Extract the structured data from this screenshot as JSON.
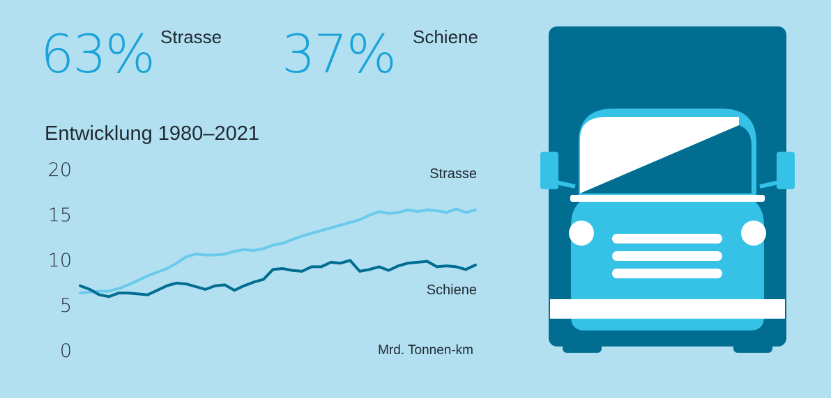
{
  "colors": {
    "background": "#b3e0f1",
    "accent": "#1aa3d9",
    "road": "#6bcaeb",
    "rail": "#006d91",
    "truck_light": "#36c2e6",
    "truck_dark": "#006d91",
    "text": "#1f2a33"
  },
  "headline": {
    "road": {
      "percent": "63%",
      "label": "Strasse"
    },
    "rail": {
      "percent": "37%",
      "label": "Schiene"
    }
  },
  "chart_data": {
    "type": "line",
    "title": "Entwicklung 1980–2021",
    "unit_label": "Mrd. Tonnen-km",
    "x_start": 1980,
    "x_end": 2021,
    "ylim": [
      0,
      20
    ],
    "yticks": [
      "0",
      "5",
      "10",
      "15",
      "20"
    ],
    "grid": false,
    "series": [
      {
        "name": "Strasse",
        "color": "#6bcaeb",
        "values": [
          6.3,
          6.4,
          6.5,
          6.5,
          6.8,
          7.2,
          7.7,
          8.2,
          8.6,
          9.0,
          9.6,
          10.3,
          10.6,
          10.5,
          10.5,
          10.6,
          10.9,
          11.1,
          11.0,
          11.2,
          11.6,
          11.8,
          12.2,
          12.6,
          12.9,
          13.2,
          13.5,
          13.8,
          14.1,
          14.4,
          14.9,
          15.3,
          15.1,
          15.2,
          15.5,
          15.3,
          15.5,
          15.4,
          15.2,
          15.6,
          15.2,
          15.5
        ]
      },
      {
        "name": "Schiene",
        "color": "#006d91",
        "values": [
          7.1,
          6.7,
          6.1,
          5.9,
          6.3,
          6.3,
          6.2,
          6.1,
          6.6,
          7.1,
          7.4,
          7.3,
          7.0,
          6.7,
          7.1,
          7.2,
          6.6,
          7.1,
          7.5,
          7.8,
          8.9,
          9.0,
          8.8,
          8.7,
          9.2,
          9.2,
          9.7,
          9.6,
          9.9,
          8.7,
          8.9,
          9.2,
          8.8,
          9.3,
          9.6,
          9.7,
          9.8,
          9.2,
          9.3,
          9.2,
          8.9,
          9.4
        ]
      }
    ]
  }
}
